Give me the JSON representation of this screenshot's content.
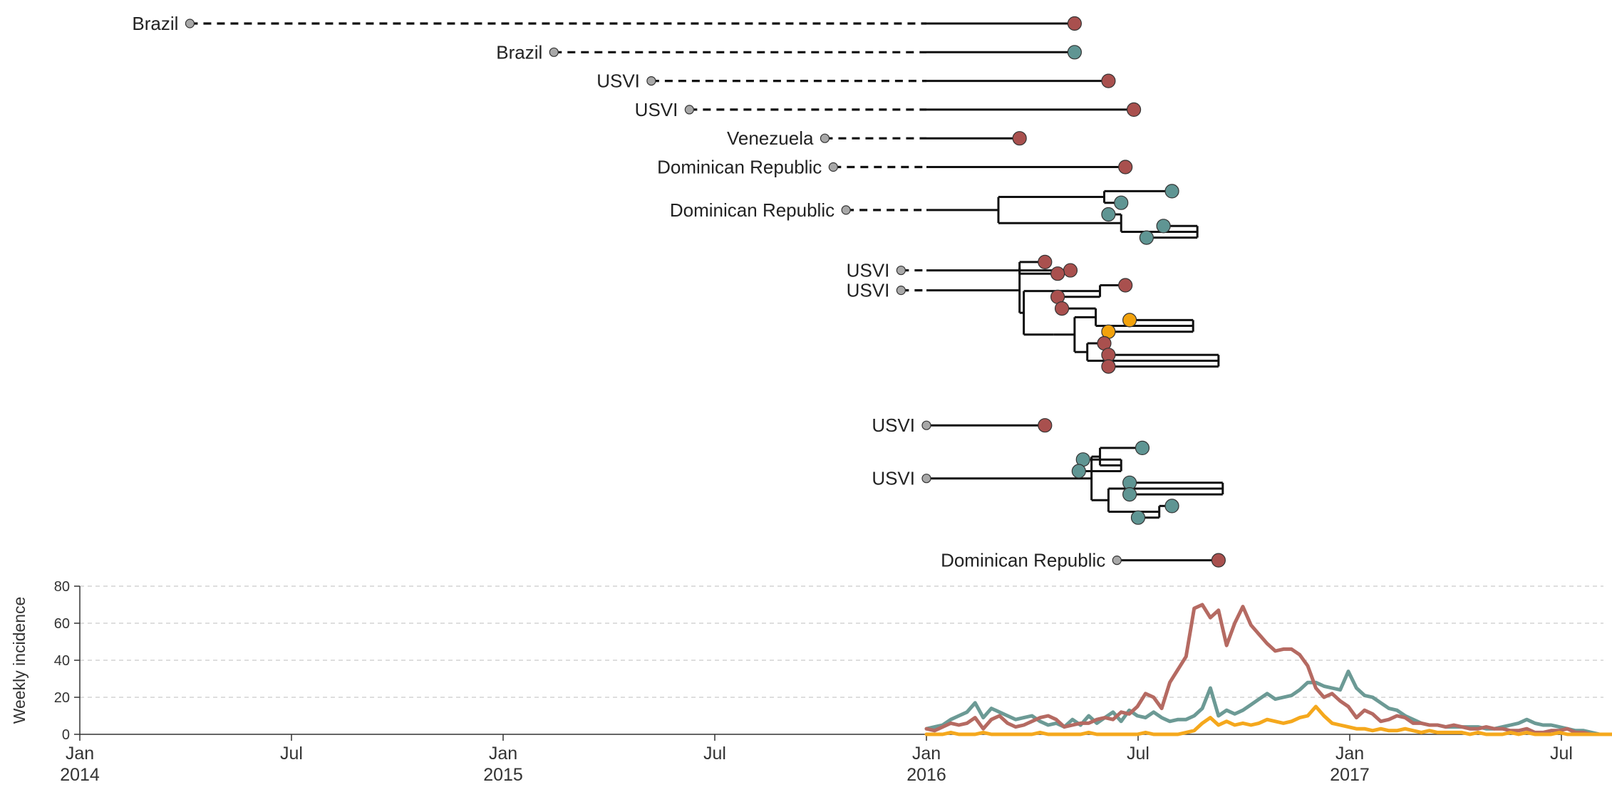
{
  "colors": {
    "red": "#a9504e",
    "teal": "#5f9593",
    "orange": "#f2a20c",
    "root": "#a8a8a8",
    "line_red": "#b56a62",
    "line_teal": "#6c9a95",
    "line_orange": "#f5a81d"
  },
  "chart_data": [
    {
      "type": "tree",
      "time_axis": {
        "min": 2014.0,
        "max": 2017.6
      },
      "clades": [
        {
          "label": "Brazil",
          "root": 2014.26,
          "row": 0,
          "tree": {
            "tip": 2016.35,
            "color": "red"
          }
        },
        {
          "label": "Brazil",
          "root": 2015.12,
          "row": 1,
          "tree": {
            "tip": 2016.35,
            "color": "teal"
          }
        },
        {
          "label": "USVI",
          "root": 2015.35,
          "row": 2,
          "tree": {
            "tip": 2016.43,
            "color": "red"
          }
        },
        {
          "label": "USVI",
          "root": 2015.44,
          "row": 3,
          "tree": {
            "tip": 2016.49,
            "color": "red"
          }
        },
        {
          "label": "Venezuela",
          "root": 2015.76,
          "row": 4,
          "tree": {
            "tip": 2016.22,
            "color": "red"
          }
        },
        {
          "label": "Dominican Republic",
          "root": 2015.78,
          "row": 5,
          "tree": {
            "tip": 2016.47,
            "color": "red"
          }
        },
        {
          "label": "Dominican Republic",
          "root": 2015.81,
          "row": 6.65,
          "tree": {
            "t": 2016.17,
            "children": [
              {
                "t": 2016.42,
                "children": [
                  {
                    "tip": 2016.58,
                    "color": "teal"
                  },
                  {
                    "tip": 2016.46,
                    "color": "teal"
                  }
                ]
              },
              {
                "t": 2016.46,
                "children": [
                  {
                    "tip": 2016.43,
                    "color": "teal"
                  },
                  {
                    "t": 2016.64,
                    "children": [
                      {
                        "tip": 2016.56,
                        "color": "teal"
                      },
                      {
                        "tip": 2016.52,
                        "color": "teal"
                      }
                    ]
                  }
                ]
              }
            ]
          }
        },
        {
          "label": "USVI",
          "root": 2015.94,
          "row": 8.6,
          "tree": {
            "tip": 2016.34,
            "color": "red"
          }
        },
        {
          "label": "USVI",
          "root": 2015.94,
          "row": 10.13,
          "tree": {
            "t": 2016.22,
            "children": [
              {
                "t": 2016.22,
                "children": [
                  {
                    "tip": 2016.28,
                    "color": "red"
                  },
                  {
                    "tip": 2016.31,
                    "color": "red"
                  }
                ]
              },
              {
                "t": 2016.23,
                "children": [
                  {
                    "t": 2016.41,
                    "children": [
                      {
                        "tip": 2016.47,
                        "color": "red"
                      },
                      {
                        "tip": 2016.31,
                        "color": "red"
                      }
                    ]
                  },
                  {
                    "t": 2016.3,
                    "children": [
                      {
                        "t": 2016.35,
                        "children": [
                          {
                            "t": 2016.4,
                            "children": [
                              {
                                "tip": 2016.32,
                                "color": "red"
                              },
                              {
                                "t": 2016.63,
                                "children": [
                                  {
                                    "tip": 2016.48,
                                    "color": "orange"
                                  },
                                  {
                                    "tip": 2016.43,
                                    "color": "orange"
                                  }
                                ]
                              }
                            ]
                          },
                          {
                            "t": 2016.38,
                            "children": [
                              {
                                "tip": 2016.42,
                                "color": "red"
                              },
                              {
                                "t": 2016.69,
                                "children": [
                                  {
                                    "tip": 2016.43,
                                    "color": "red"
                                  },
                                  {
                                    "tip": 2016.43,
                                    "color": "red"
                                  }
                                ]
                              }
                            ]
                          }
                        ]
                      }
                    ]
                  }
                ]
              }
            ]
          }
        },
        {
          "label": "USVI",
          "root": 2016.0,
          "row": 14.0,
          "tree": {
            "tip": 2016.28,
            "color": "red"
          }
        },
        {
          "label": "USVI",
          "root": 2016.0,
          "row": 16.0,
          "tree": {
            "t": 2016.39,
            "children": [
              {
                "t": 2016.41,
                "children": [
                  {
                    "tip": 2016.51,
                    "color": "teal"
                  },
                  {
                    "t": 2016.46,
                    "children": [
                      {
                        "tip": 2016.37,
                        "color": "teal"
                      },
                      {
                        "tip": 2016.36,
                        "color": "teal"
                      }
                    ]
                  }
                ]
              },
              {
                "t": 2016.43,
                "children": [
                  {
                    "t": 2016.7,
                    "children": [
                      {
                        "tip": 2016.48,
                        "color": "teal"
                      },
                      {
                        "tip": 2016.48,
                        "color": "teal"
                      }
                    ]
                  },
                  {
                    "t": 2016.55,
                    "children": [
                      {
                        "tip": 2016.58,
                        "color": "teal"
                      },
                      {
                        "tip": 2016.5,
                        "color": "teal"
                      }
                    ]
                  }
                ]
              }
            ]
          }
        },
        {
          "label": "Dominican Republic",
          "root": 2016.45,
          "row": 18.7,
          "tree": {
            "tip": 2016.69,
            "color": "red"
          }
        }
      ]
    },
    {
      "type": "line",
      "ylabel": "Weekly incidence",
      "ylim": [
        0,
        80
      ],
      "yticks": [
        0,
        20,
        40,
        60,
        80
      ],
      "grid": true,
      "xticks": [
        {
          "value": 2014.0,
          "line1": "Jan",
          "line2": "2014"
        },
        {
          "value": 2014.5,
          "line1": "Jul",
          "line2": ""
        },
        {
          "value": 2015.0,
          "line1": "Jan",
          "line2": "2015"
        },
        {
          "value": 2015.5,
          "line1": "Jul",
          "line2": ""
        },
        {
          "value": 2016.0,
          "line1": "Jan",
          "line2": "2016"
        },
        {
          "value": 2016.5,
          "line1": "Jul",
          "line2": ""
        },
        {
          "value": 2017.0,
          "line1": "Jan",
          "line2": "2017"
        },
        {
          "value": 2017.5,
          "line1": "Jul",
          "line2": ""
        }
      ],
      "x_start": 2016.0,
      "x_step_weeks": 1,
      "series": [
        {
          "color": "line_teal",
          "values": [
            3,
            4,
            5,
            8,
            10,
            12,
            17,
            9,
            14,
            12,
            10,
            8,
            9,
            10,
            7,
            5,
            6,
            4,
            8,
            5,
            10,
            6,
            9,
            12,
            7,
            13,
            10,
            9,
            12,
            9,
            7,
            8,
            8,
            10,
            14,
            25,
            10,
            13,
            11,
            13,
            16,
            19,
            22,
            19,
            20,
            21,
            24,
            28,
            28,
            26,
            25,
            24,
            34,
            25,
            21,
            20,
            17,
            14,
            13,
            10,
            8,
            6,
            5,
            5,
            4,
            4,
            4,
            4,
            4,
            3,
            3,
            4,
            5,
            6,
            8,
            6,
            5,
            5,
            4,
            3,
            2,
            2,
            1,
            0,
            0,
            0,
            0
          ]
        },
        {
          "color": "line_red",
          "values": [
            3,
            2,
            4,
            6,
            5,
            6,
            9,
            3,
            8,
            10,
            6,
            4,
            5,
            7,
            9,
            10,
            8,
            4,
            5,
            6,
            6,
            8,
            9,
            8,
            12,
            11,
            15,
            22,
            20,
            14,
            28,
            35,
            42,
            68,
            70,
            63,
            67,
            48,
            60,
            69,
            59,
            54,
            49,
            45,
            46,
            46,
            43,
            37,
            25,
            20,
            22,
            18,
            15,
            9,
            13,
            11,
            7,
            8,
            10,
            9,
            6,
            6,
            5,
            5,
            4,
            5,
            4,
            3,
            3,
            4,
            3,
            3,
            2,
            2,
            3,
            1,
            1,
            2,
            2,
            3,
            1,
            1,
            0,
            0,
            0,
            0,
            0
          ]
        },
        {
          "color": "line_orange",
          "values": [
            0,
            0,
            0,
            1,
            0,
            0,
            0,
            1,
            0,
            0,
            0,
            0,
            0,
            0,
            1,
            0,
            0,
            0,
            0,
            0,
            1,
            0,
            0,
            0,
            0,
            0,
            0,
            1,
            0,
            0,
            0,
            0,
            1,
            2,
            6,
            9,
            5,
            7,
            5,
            6,
            5,
            6,
            8,
            7,
            6,
            7,
            9,
            10,
            15,
            10,
            6,
            5,
            4,
            3,
            3,
            2,
            3,
            2,
            2,
            3,
            2,
            1,
            2,
            1,
            1,
            1,
            1,
            0,
            1,
            0,
            0,
            0,
            1,
            0,
            1,
            0,
            0,
            0,
            1,
            0,
            0,
            0,
            0,
            0,
            0,
            0,
            0
          ]
        }
      ]
    }
  ]
}
